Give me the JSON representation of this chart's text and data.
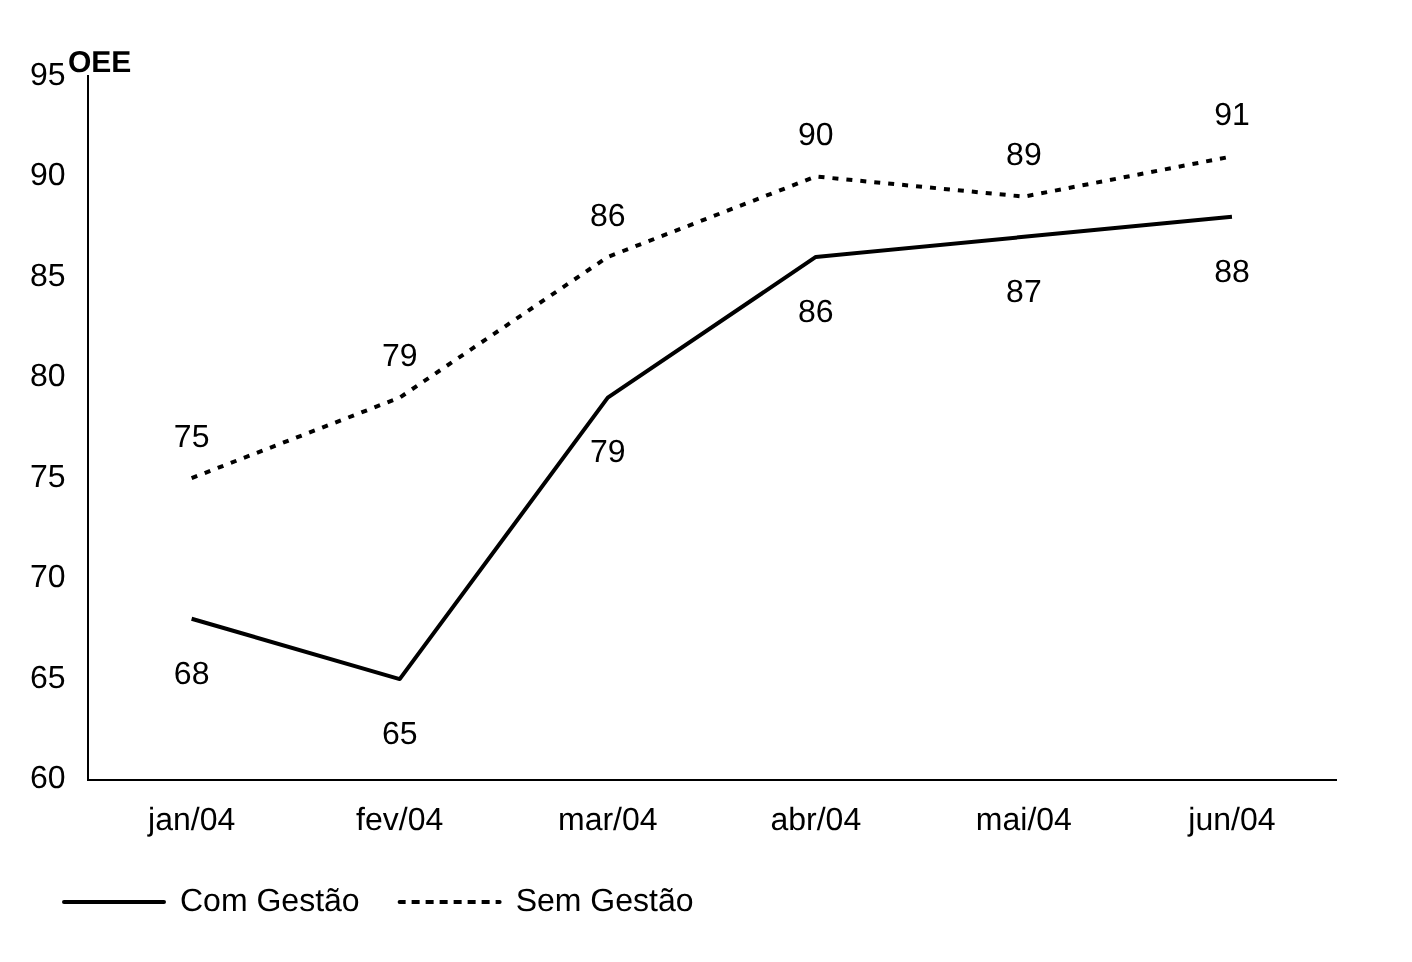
{
  "chart_data": {
    "type": "line",
    "ylabel": "OEE",
    "categories": [
      "jan/04",
      "fev/04",
      "mar/04",
      "abr/04",
      "mai/04",
      "jun/04"
    ],
    "series": [
      {
        "name": "Com Gestão",
        "color": "#000000",
        "values": [
          68,
          65,
          79,
          86,
          87,
          88
        ],
        "line_style": "solid"
      },
      {
        "name": "Sem Gestão",
        "color": "#000000",
        "values": [
          75,
          79,
          86,
          90,
          89,
          91
        ],
        "line_style": "dotted"
      }
    ],
    "ylim": [
      60,
      95
    ],
    "yticks": [
      60,
      65,
      70,
      75,
      80,
      85,
      90,
      95
    ],
    "grid": false,
    "legend": "bottom",
    "marker": "none",
    "data_labels": true
  }
}
